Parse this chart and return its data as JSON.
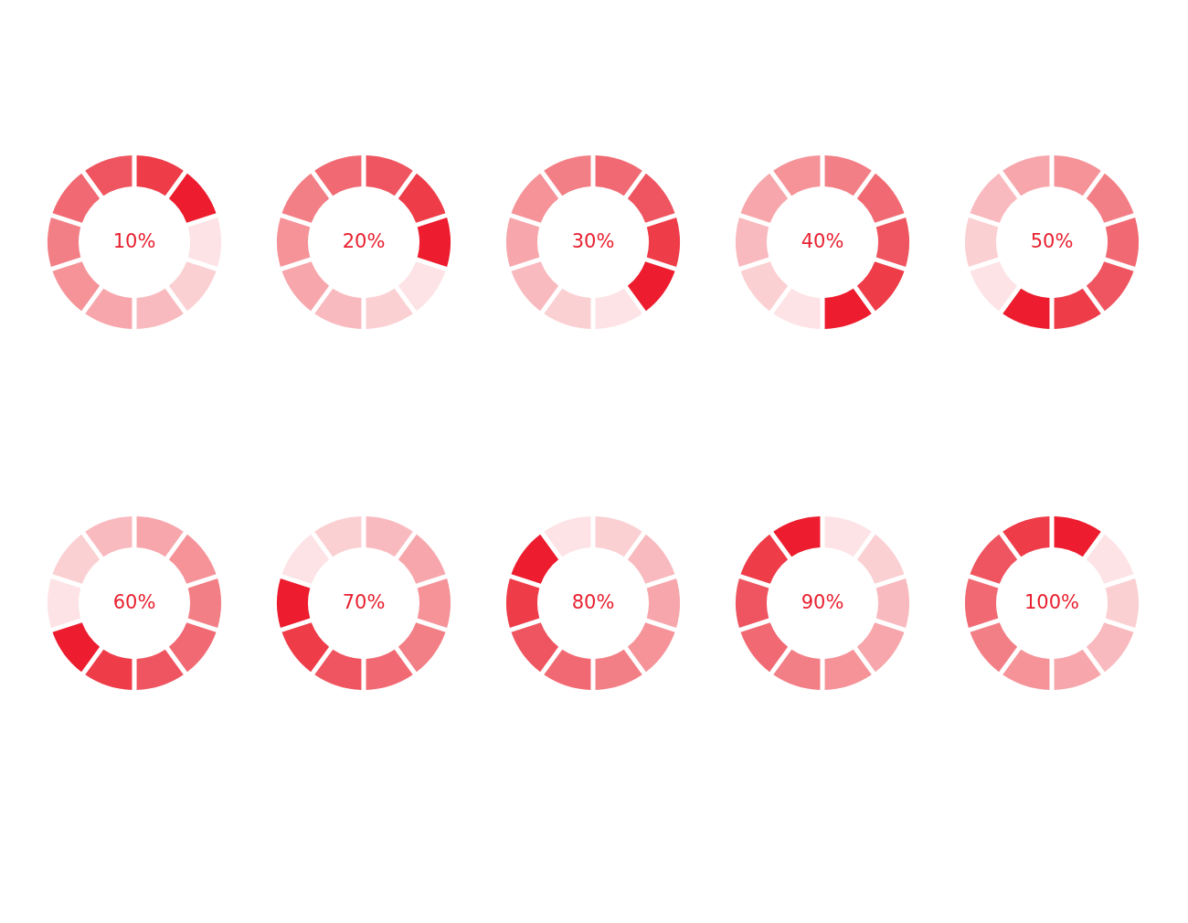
{
  "chart_data": [
    {
      "type": "donut",
      "title": "10%",
      "categories": [
        null,
        null,
        null,
        null,
        null,
        null,
        null,
        null,
        null,
        null
      ],
      "values": [
        10,
        10,
        10,
        10,
        10,
        10,
        10,
        10,
        10,
        10
      ],
      "colors": [
        "#ee3c49",
        "#ed1c2e",
        "#fde3e5",
        "#fbd0d3",
        "#f9babf",
        "#f7a7ac",
        "#f59399",
        "#f37f86",
        "#f16a73",
        "#ef5560"
      ]
    },
    {
      "type": "donut",
      "title": "20%",
      "categories": [
        null,
        null,
        null,
        null,
        null,
        null,
        null,
        null,
        null,
        null
      ],
      "values": [
        10,
        10,
        10,
        10,
        10,
        10,
        10,
        10,
        10,
        10
      ],
      "colors": [
        "#ef5560",
        "#ee3c49",
        "#ed1c2e",
        "#fde3e5",
        "#fbd0d3",
        "#f9babf",
        "#f7a7ac",
        "#f59399",
        "#f37f86",
        "#f16a73"
      ]
    },
    {
      "type": "donut",
      "title": "30%",
      "categories": [
        null,
        null,
        null,
        null,
        null,
        null,
        null,
        null,
        null,
        null
      ],
      "values": [
        10,
        10,
        10,
        10,
        10,
        10,
        10,
        10,
        10,
        10
      ],
      "colors": [
        "#f16a73",
        "#ef5560",
        "#ee3c49",
        "#ed1c2e",
        "#fde3e5",
        "#fbd0d3",
        "#f9babf",
        "#f7a7ac",
        "#f59399",
        "#f37f86"
      ]
    },
    {
      "type": "donut",
      "title": "40%",
      "categories": [
        null,
        null,
        null,
        null,
        null,
        null,
        null,
        null,
        null,
        null
      ],
      "values": [
        10,
        10,
        10,
        10,
        10,
        10,
        10,
        10,
        10,
        10
      ],
      "colors": [
        "#f37f86",
        "#f16a73",
        "#ef5560",
        "#ee3c49",
        "#ed1c2e",
        "#fde3e5",
        "#fbd0d3",
        "#f9babf",
        "#f7a7ac",
        "#f59399"
      ]
    },
    {
      "type": "donut",
      "title": "50%",
      "categories": [
        null,
        null,
        null,
        null,
        null,
        null,
        null,
        null,
        null,
        null
      ],
      "values": [
        10,
        10,
        10,
        10,
        10,
        10,
        10,
        10,
        10,
        10
      ],
      "colors": [
        "#f59399",
        "#f37f86",
        "#f16a73",
        "#ef5560",
        "#ee3c49",
        "#ed1c2e",
        "#fde3e5",
        "#fbd0d3",
        "#f9babf",
        "#f7a7ac"
      ]
    },
    {
      "type": "donut",
      "title": "60%",
      "categories": [
        null,
        null,
        null,
        null,
        null,
        null,
        null,
        null,
        null,
        null
      ],
      "values": [
        10,
        10,
        10,
        10,
        10,
        10,
        10,
        10,
        10,
        10
      ],
      "colors": [
        "#f7a7ac",
        "#f59399",
        "#f37f86",
        "#f16a73",
        "#ef5560",
        "#ee3c49",
        "#ed1c2e",
        "#fde3e5",
        "#fbd0d3",
        "#f9babf"
      ]
    },
    {
      "type": "donut",
      "title": "70%",
      "categories": [
        null,
        null,
        null,
        null,
        null,
        null,
        null,
        null,
        null,
        null
      ],
      "values": [
        10,
        10,
        10,
        10,
        10,
        10,
        10,
        10,
        10,
        10
      ],
      "colors": [
        "#f9babf",
        "#f7a7ac",
        "#f59399",
        "#f37f86",
        "#f16a73",
        "#ef5560",
        "#ee3c49",
        "#ed1c2e",
        "#fde3e5",
        "#fbd0d3"
      ]
    },
    {
      "type": "donut",
      "title": "80%",
      "categories": [
        null,
        null,
        null,
        null,
        null,
        null,
        null,
        null,
        null,
        null
      ],
      "values": [
        10,
        10,
        10,
        10,
        10,
        10,
        10,
        10,
        10,
        10
      ],
      "colors": [
        "#fbd0d3",
        "#f9babf",
        "#f7a7ac",
        "#f59399",
        "#f37f86",
        "#f16a73",
        "#ef5560",
        "#ee3c49",
        "#ed1c2e",
        "#fde3e5"
      ]
    },
    {
      "type": "donut",
      "title": "90%",
      "categories": [
        null,
        null,
        null,
        null,
        null,
        null,
        null,
        null,
        null,
        null
      ],
      "values": [
        10,
        10,
        10,
        10,
        10,
        10,
        10,
        10,
        10,
        10
      ],
      "colors": [
        "#fde3e5",
        "#fbd0d3",
        "#f9babf",
        "#f7a7ac",
        "#f59399",
        "#f37f86",
        "#f16a73",
        "#ef5560",
        "#ee3c49",
        "#ed1c2e"
      ]
    },
    {
      "type": "donut",
      "title": "100%",
      "categories": [
        null,
        null,
        null,
        null,
        null,
        null,
        null,
        null,
        null,
        null
      ],
      "values": [
        10,
        10,
        10,
        10,
        10,
        10,
        10,
        10,
        10,
        10
      ],
      "colors": [
        "#ed1c2e",
        "#fde3e5",
        "#fbd0d3",
        "#f9babf",
        "#f7a7ac",
        "#f59399",
        "#f37f86",
        "#f16a73",
        "#ef5560",
        "#ee3c49"
      ]
    }
  ]
}
